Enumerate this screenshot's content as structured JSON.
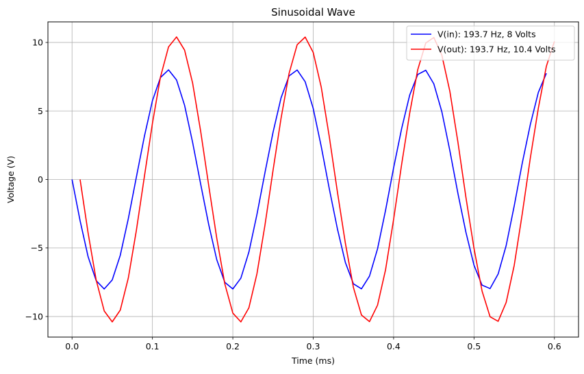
{
  "chart_data": {
    "type": "line",
    "title": "Sinusoidal Wave",
    "xlabel": "Time (ms)",
    "ylabel": "Voltage (V)",
    "xlim": [
      -0.03,
      0.63
    ],
    "ylim": [
      -11.5,
      11.5
    ],
    "xticks": [
      0.0,
      0.1,
      0.2,
      0.3,
      0.4,
      0.5,
      0.6
    ],
    "xtick_labels": [
      "0.0",
      "0.1",
      "0.2",
      "0.3",
      "0.4",
      "0.5",
      "0.6"
    ],
    "yticks": [
      -10,
      -5,
      0,
      5,
      10
    ],
    "ytick_labels": [
      "−10",
      "−5",
      "0",
      "5",
      "10"
    ],
    "grid": true,
    "legend_position": "top-right",
    "series": [
      {
        "name": "V(in): 193.7 Hz, 8 Volts",
        "color": "#0000ff",
        "x": [
          0.0,
          0.01,
          0.02,
          0.03,
          0.04,
          0.05,
          0.06,
          0.07,
          0.08,
          0.09,
          0.1,
          0.11,
          0.12,
          0.13,
          0.14,
          0.15,
          0.16,
          0.17,
          0.18,
          0.19,
          0.2,
          0.21,
          0.22,
          0.23,
          0.24,
          0.25,
          0.26,
          0.27,
          0.28,
          0.29,
          0.3,
          0.31,
          0.32,
          0.33,
          0.34,
          0.35,
          0.36,
          0.37,
          0.38,
          0.39,
          0.4,
          0.41,
          0.42,
          0.43,
          0.44,
          0.45,
          0.46,
          0.47,
          0.48,
          0.49,
          0.5,
          0.51,
          0.52,
          0.53,
          0.54,
          0.55,
          0.56,
          0.57,
          0.58,
          0.59
        ],
        "y": [
          0.0,
          -3.01,
          -5.64,
          -7.38,
          -7.99,
          -7.33,
          -5.53,
          -2.86,
          0.17,
          3.15,
          5.75,
          7.44,
          8.0,
          7.26,
          5.41,
          2.7,
          -0.34,
          -3.29,
          -5.85,
          -7.5,
          -7.99,
          -7.2,
          -5.29,
          -2.55,
          0.51,
          3.44,
          5.96,
          7.56,
          7.99,
          7.13,
          5.18,
          2.4,
          -0.68,
          -3.58,
          -6.06,
          -7.61,
          -7.98,
          -7.05,
          -5.06,
          -2.24,
          0.85,
          3.72,
          6.16,
          7.66,
          7.97,
          6.98,
          4.94,
          2.09,
          -1.02,
          -3.87,
          -6.26,
          -7.71,
          -7.96,
          -6.9,
          -4.82,
          -1.93,
          1.19,
          4.0,
          6.35,
          7.75
        ]
      },
      {
        "name": "V(out): 193.7 Hz, 10.4 Volts",
        "color": "#ff0000",
        "x": [
          0.01,
          0.02,
          0.03,
          0.04,
          0.05,
          0.06,
          0.07,
          0.08,
          0.09,
          0.1,
          0.11,
          0.12,
          0.13,
          0.14,
          0.15,
          0.16,
          0.17,
          0.18,
          0.19,
          0.2,
          0.21,
          0.22,
          0.23,
          0.24,
          0.25,
          0.26,
          0.27,
          0.28,
          0.29,
          0.3,
          0.31,
          0.32,
          0.33,
          0.34,
          0.35,
          0.36,
          0.37,
          0.38,
          0.39,
          0.4,
          0.41,
          0.42,
          0.43,
          0.44,
          0.45,
          0.46,
          0.47,
          0.48,
          0.49,
          0.5,
          0.51,
          0.52,
          0.53,
          0.54,
          0.55,
          0.56,
          0.57,
          0.58,
          0.59,
          0.6
        ],
        "y": [
          0.0,
          -3.91,
          -7.33,
          -9.59,
          -10.39,
          -9.53,
          -7.19,
          -3.72,
          0.22,
          4.1,
          7.48,
          9.67,
          10.4,
          9.44,
          7.03,
          3.51,
          -0.44,
          -4.28,
          -7.61,
          -9.75,
          -10.39,
          -9.36,
          -6.88,
          -3.32,
          0.66,
          4.47,
          7.75,
          9.83,
          10.39,
          9.27,
          6.73,
          3.12,
          -0.88,
          -4.65,
          -7.88,
          -9.89,
          -10.37,
          -9.17,
          -6.58,
          -2.91,
          1.11,
          4.84,
          8.01,
          9.96,
          10.36,
          9.07,
          6.42,
          2.72,
          -1.33,
          -5.03,
          -8.14,
          -10.02,
          -10.35,
          -8.97,
          -6.27,
          -2.51,
          1.55,
          5.2,
          8.26,
          10.08
        ]
      }
    ]
  }
}
